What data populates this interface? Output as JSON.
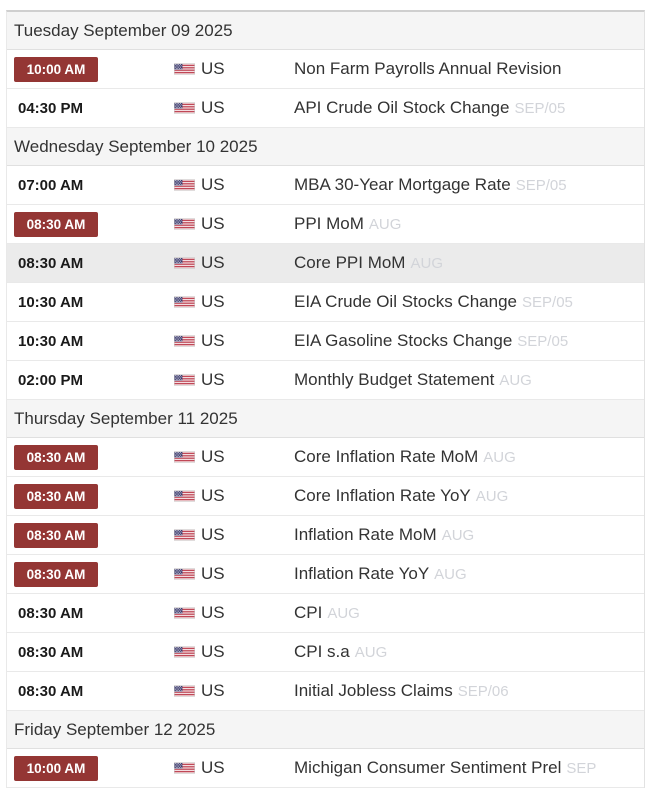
{
  "colors": {
    "badge_background": "#943634",
    "badge_text": "#ffffff",
    "header_background": "#f5f5f5",
    "row_highlight_background": "#ebebeb",
    "primary_text": "#333333",
    "reference_text": "#d2d4d9",
    "border": "#e0e0e0"
  },
  "calendar": {
    "sections": [
      {
        "date_label": "Tuesday September 09 2025",
        "rows": [
          {
            "time": "10:00 AM",
            "time_badge": true,
            "highlighted": false,
            "country": "US",
            "flag_icon": "us-flag-icon",
            "event": "Non Farm Payrolls Annual Revision",
            "reference": ""
          },
          {
            "time": "04:30 PM",
            "time_badge": false,
            "highlighted": false,
            "country": "US",
            "flag_icon": "us-flag-icon",
            "event": "API Crude Oil Stock Change",
            "reference": "SEP/05"
          }
        ]
      },
      {
        "date_label": "Wednesday September 10 2025",
        "rows": [
          {
            "time": "07:00 AM",
            "time_badge": false,
            "highlighted": false,
            "country": "US",
            "flag_icon": "us-flag-icon",
            "event": "MBA 30-Year Mortgage Rate",
            "reference": "SEP/05"
          },
          {
            "time": "08:30 AM",
            "time_badge": true,
            "highlighted": false,
            "country": "US",
            "flag_icon": "us-flag-icon",
            "event": "PPI MoM",
            "reference": "AUG"
          },
          {
            "time": "08:30 AM",
            "time_badge": false,
            "highlighted": true,
            "country": "US",
            "flag_icon": "us-flag-icon",
            "event": "Core PPI MoM",
            "reference": "AUG"
          },
          {
            "time": "10:30 AM",
            "time_badge": false,
            "highlighted": false,
            "country": "US",
            "flag_icon": "us-flag-icon",
            "event": "EIA Crude Oil Stocks Change",
            "reference": "SEP/05"
          },
          {
            "time": "10:30 AM",
            "time_badge": false,
            "highlighted": false,
            "country": "US",
            "flag_icon": "us-flag-icon",
            "event": "EIA Gasoline Stocks Change",
            "reference": "SEP/05"
          },
          {
            "time": "02:00 PM",
            "time_badge": false,
            "highlighted": false,
            "country": "US",
            "flag_icon": "us-flag-icon",
            "event": "Monthly Budget Statement",
            "reference": "AUG"
          }
        ]
      },
      {
        "date_label": "Thursday September 11 2025",
        "rows": [
          {
            "time": "08:30 AM",
            "time_badge": true,
            "highlighted": false,
            "country": "US",
            "flag_icon": "us-flag-icon",
            "event": "Core Inflation Rate MoM",
            "reference": "AUG"
          },
          {
            "time": "08:30 AM",
            "time_badge": true,
            "highlighted": false,
            "country": "US",
            "flag_icon": "us-flag-icon",
            "event": "Core Inflation Rate YoY",
            "reference": "AUG"
          },
          {
            "time": "08:30 AM",
            "time_badge": true,
            "highlighted": false,
            "country": "US",
            "flag_icon": "us-flag-icon",
            "event": "Inflation Rate MoM",
            "reference": "AUG"
          },
          {
            "time": "08:30 AM",
            "time_badge": true,
            "highlighted": false,
            "country": "US",
            "flag_icon": "us-flag-icon",
            "event": "Inflation Rate YoY",
            "reference": "AUG"
          },
          {
            "time": "08:30 AM",
            "time_badge": false,
            "highlighted": false,
            "country": "US",
            "flag_icon": "us-flag-icon",
            "event": "CPI",
            "reference": "AUG"
          },
          {
            "time": "08:30 AM",
            "time_badge": false,
            "highlighted": false,
            "country": "US",
            "flag_icon": "us-flag-icon",
            "event": "CPI s.a",
            "reference": "AUG"
          },
          {
            "time": "08:30 AM",
            "time_badge": false,
            "highlighted": false,
            "country": "US",
            "flag_icon": "us-flag-icon",
            "event": "Initial Jobless Claims",
            "reference": "SEP/06"
          }
        ]
      },
      {
        "date_label": "Friday September 12 2025",
        "rows": [
          {
            "time": "10:00 AM",
            "time_badge": true,
            "highlighted": false,
            "country": "US",
            "flag_icon": "us-flag-icon",
            "event": "Michigan Consumer Sentiment Prel",
            "reference": "SEP"
          }
        ]
      }
    ]
  }
}
